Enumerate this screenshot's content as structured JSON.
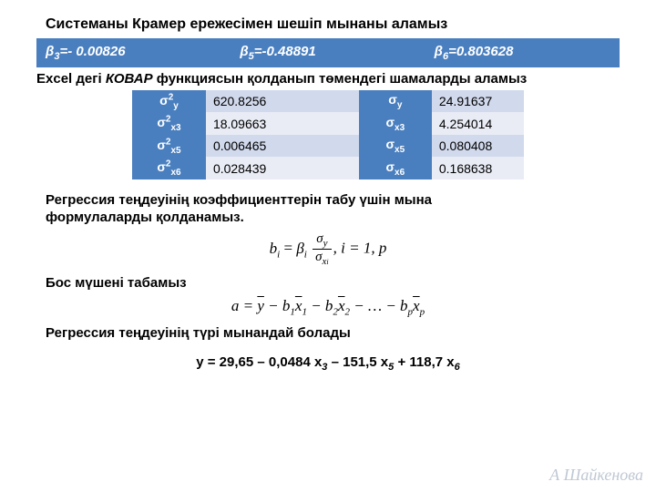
{
  "title1": "Системаны Крамер ережесімен шешіп мынаны аламыз",
  "beta": {
    "b3": "β",
    "b3sub": "3",
    "b3rest": "=- 0.00826",
    "b5": "β",
    "b5sub": "5",
    "b5rest": "=-0.48891",
    "b6": "β",
    "b6sub": "6",
    "b6rest": "=0.803628"
  },
  "title2_prefix": "Excel",
  "title2_mid": " дегі ",
  "title2_em": "КОВАР",
  "title2_rest": " функциясын қолданып төмендегі шамаларды аламыз",
  "var_rows": [
    {
      "left_label": "σ",
      "left_sup": "2",
      "left_sub": "y",
      "left_val": "620.8256",
      "right_label": "σ",
      "right_sub": "y",
      "right_val": "24.91637",
      "cls": "row-a"
    },
    {
      "left_label": "σ",
      "left_sup": "2",
      "left_sub": "x3",
      "left_val": "18.09663",
      "right_label": "σ",
      "right_sub": "x3",
      "right_val": "4.254014",
      "cls": "row-b"
    },
    {
      "left_label": "σ",
      "left_sup": "2",
      "left_sub": "x5",
      "left_val": "0.006465",
      "right_label": "σ",
      "right_sub": "x5",
      "right_val": "0.080408",
      "cls": "row-a"
    },
    {
      "left_label": "σ",
      "left_sup": "2",
      "left_sub": "x6",
      "left_val": "0.028439",
      "right_label": "σ",
      "right_sub": "x6",
      "right_val": "0.168638",
      "cls": "row-b"
    }
  ],
  "section1_line1": "Регрессия теңдеуінің коэффициенттерін табу үшін мына",
  "section1_line2": "формулаларды қолданамыз.",
  "formula1_trail": ",   i = 1, p",
  "section2": "Бос мүшені табамыз",
  "section3": "Регрессия теңдеуінің түрі мынандай болады",
  "final": {
    "pre": "у  = 29,65 – 0,0484 х",
    "s1": "3",
    "mid1": " – 151,5  х",
    "s2": "5",
    "mid2": " + 118,7 х",
    "s3": "6"
  },
  "signature": "А Шайкенова"
}
